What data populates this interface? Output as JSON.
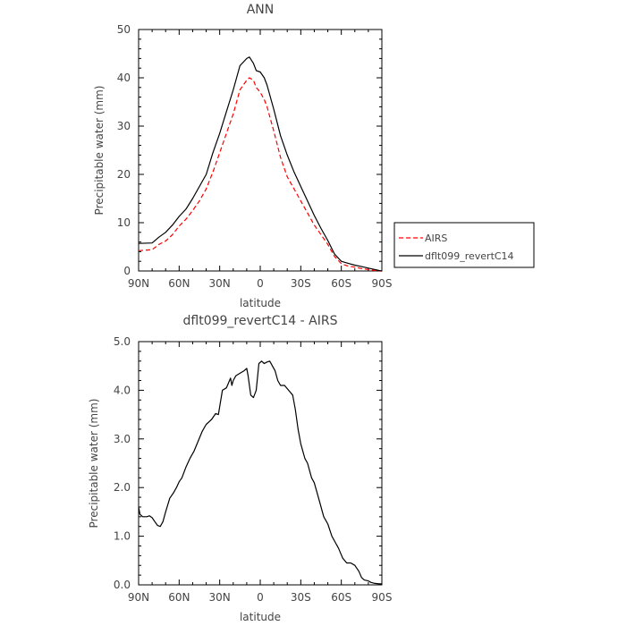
{
  "chart_data": [
    {
      "type": "line",
      "title": "ANN",
      "xlabel": "latitude",
      "ylabel": "Precipitable water (mm)",
      "xticks": [
        "90N",
        "60N",
        "30N",
        "0",
        "30S",
        "60S",
        "90S"
      ],
      "yticks": [
        "0",
        "10",
        "20",
        "30",
        "40",
        "50"
      ],
      "xlim": [
        -90,
        90
      ],
      "ylim": [
        0,
        50
      ],
      "grid": false,
      "legend_position": "right",
      "series": [
        {
          "name": "AIRS",
          "color": "#ff0000",
          "dash": "dashed",
          "x": [
            -90,
            -80,
            -75,
            -70,
            -65,
            -60,
            -55,
            -50,
            -45,
            -40,
            -35,
            -30,
            -25,
            -20,
            -15,
            -10,
            -8,
            -5,
            -3,
            0,
            3,
            5,
            10,
            15,
            20,
            25,
            30,
            35,
            40,
            45,
            50,
            55,
            60,
            65,
            70,
            75,
            80,
            85,
            88,
            90
          ],
          "y": [
            4.2,
            4.4,
            5.5,
            6.2,
            7.5,
            9.3,
            10.7,
            12.5,
            14.5,
            17.0,
            20.5,
            24.5,
            28.5,
            32.5,
            37.5,
            39.5,
            40.0,
            39.5,
            38.0,
            37.0,
            35.5,
            34.0,
            29.0,
            23.5,
            19.5,
            17.0,
            14.5,
            12.0,
            9.5,
            7.5,
            5.5,
            3.0,
            1.5,
            1.0,
            0.8,
            0.5,
            0.3,
            0.1,
            0.0,
            0.0
          ]
        },
        {
          "name": "dflt099_revertC14",
          "color": "#000000",
          "dash": "solid",
          "x": [
            -90,
            -80,
            -75,
            -70,
            -65,
            -60,
            -55,
            -50,
            -45,
            -40,
            -35,
            -30,
            -25,
            -20,
            -15,
            -10,
            -8,
            -5,
            -3,
            0,
            3,
            5,
            10,
            15,
            20,
            25,
            30,
            35,
            40,
            45,
            50,
            55,
            60,
            65,
            70,
            75,
            80,
            85,
            88,
            90
          ],
          "y": [
            5.7,
            5.8,
            7.0,
            8.0,
            9.5,
            11.3,
            12.8,
            15.0,
            17.5,
            20.0,
            24.5,
            28.5,
            33.0,
            37.5,
            42.5,
            44.0,
            44.3,
            43.0,
            41.5,
            41.2,
            40.0,
            38.5,
            33.5,
            28.0,
            24.0,
            20.5,
            17.5,
            14.5,
            11.5,
            8.8,
            6.3,
            3.5,
            2.0,
            1.6,
            1.2,
            0.9,
            0.6,
            0.3,
            0.1,
            0.0
          ]
        }
      ]
    },
    {
      "type": "line",
      "title": "dflt099_revertC14 - AIRS",
      "xlabel": "latitude",
      "ylabel": "Precipitable water (mm)",
      "xticks": [
        "90N",
        "60N",
        "30N",
        "0",
        "30S",
        "60S",
        "90S"
      ],
      "yticks": [
        "0.0",
        "1.0",
        "2.0",
        "3.0",
        "4.0",
        "5.0"
      ],
      "xlim": [
        -90,
        90
      ],
      "ylim": [
        0,
        5
      ],
      "grid": false,
      "series": [
        {
          "color": "#000000",
          "dash": "solid",
          "x": [
            -90,
            -89,
            -87,
            -84,
            -82,
            -80,
            -78,
            -76,
            -74,
            -72,
            -70,
            -67,
            -64,
            -62,
            -60,
            -58,
            -55,
            -52,
            -49,
            -46,
            -43,
            -40,
            -38,
            -36,
            -33,
            -31,
            -28,
            -25,
            -22,
            -21,
            -20,
            -18,
            -15,
            -12,
            -10,
            -9,
            -7,
            -5,
            -3,
            -1,
            1,
            3,
            5,
            7,
            9,
            11,
            13,
            15,
            18,
            21,
            24,
            26,
            28,
            30,
            33,
            35,
            38,
            40,
            43,
            47,
            50,
            53,
            55,
            58,
            61,
            64,
            67,
            70,
            73,
            75,
            77,
            80,
            82,
            85,
            88,
            90
          ],
          "y": [
            1.6,
            1.45,
            1.4,
            1.4,
            1.42,
            1.38,
            1.3,
            1.22,
            1.2,
            1.3,
            1.5,
            1.78,
            1.9,
            2.0,
            2.12,
            2.2,
            2.42,
            2.6,
            2.75,
            2.95,
            3.15,
            3.3,
            3.35,
            3.4,
            3.52,
            3.5,
            4.0,
            4.05,
            4.25,
            4.1,
            4.2,
            4.3,
            4.35,
            4.4,
            4.45,
            4.3,
            3.9,
            3.85,
            4.0,
            4.55,
            4.6,
            4.55,
            4.58,
            4.6,
            4.5,
            4.4,
            4.2,
            4.1,
            4.1,
            4.0,
            3.9,
            3.6,
            3.2,
            2.9,
            2.6,
            2.5,
            2.2,
            2.1,
            1.8,
            1.4,
            1.25,
            1.0,
            0.9,
            0.75,
            0.55,
            0.45,
            0.45,
            0.4,
            0.28,
            0.15,
            0.1,
            0.08,
            0.05,
            0.03,
            0.02,
            0.02
          ]
        }
      ]
    }
  ]
}
